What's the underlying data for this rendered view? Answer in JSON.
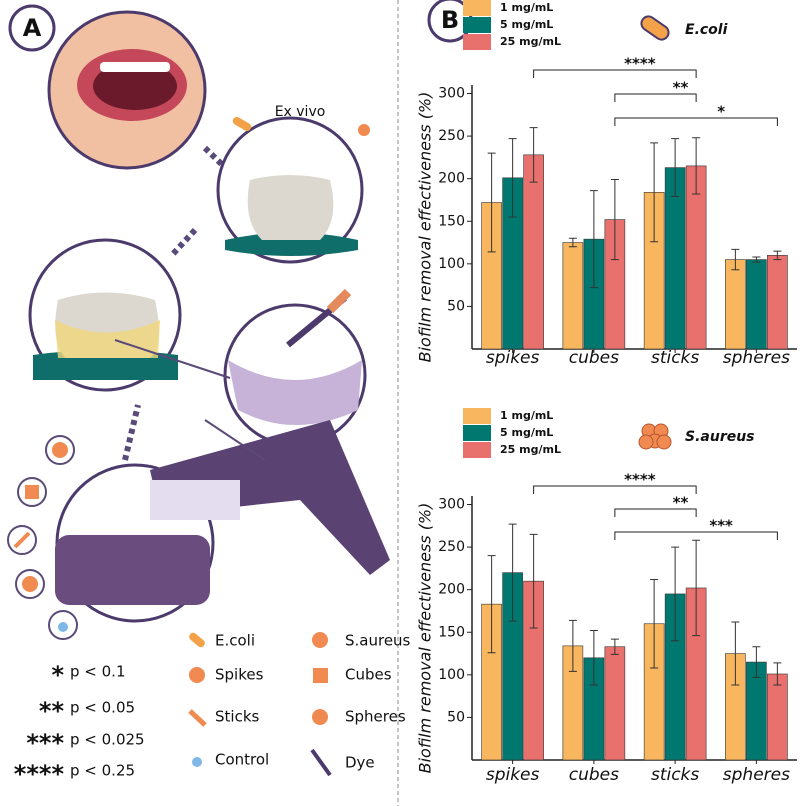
{
  "panel_a": {
    "label": "A",
    "ex_vivo": "Ex vivo",
    "legend": [
      "E.coli",
      "S.aureus",
      "Spikes",
      "Cubes",
      "Sticks",
      "Spheres",
      "Control",
      "Dye"
    ],
    "significance": [
      {
        "stars": "*",
        "text": "p < 0.1"
      },
      {
        "stars": "**",
        "text": "p < 0.05"
      },
      {
        "stars": "***",
        "text": "p < 0.025"
      },
      {
        "stars": "****",
        "text": "p < 0.25"
      }
    ]
  },
  "panel_b": {
    "label": "B"
  },
  "chart_data": [
    {
      "type": "bar",
      "legend_title": "E.coli",
      "y_label": "Biofilm removal effectiveness (%)",
      "categories": [
        "spikes",
        "cubes",
        "sticks",
        "spheres"
      ],
      "series": [
        {
          "name": "1 mg/mL",
          "color": "#f8b65e",
          "values": [
            172,
            125,
            184,
            105
          ],
          "errors": [
            58,
            5,
            58,
            12
          ]
        },
        {
          "name": "5 mg/mL",
          "color": "#00786f",
          "values": [
            201,
            129,
            213,
            105
          ],
          "errors": [
            46,
            57,
            34,
            3
          ]
        },
        {
          "name": "25 mg/mL",
          "color": "#e8716e",
          "values": [
            228,
            152,
            215,
            110
          ],
          "errors": [
            32,
            47,
            33,
            5
          ]
        }
      ],
      "ylim": [
        0,
        310
      ],
      "yticks": [
        50,
        100,
        150,
        200,
        250,
        300
      ],
      "annotations": [
        "****",
        "**",
        "*"
      ]
    },
    {
      "type": "bar",
      "legend_title": "S.aureus",
      "y_label": "Biofilm removal effectiveness (%)",
      "categories": [
        "spikes",
        "cubes",
        "sticks",
        "spheres"
      ],
      "series": [
        {
          "name": "1 mg/mL",
          "color": "#f8b65e",
          "values": [
            183,
            134,
            160,
            125
          ],
          "errors": [
            57,
            30,
            52,
            37
          ]
        },
        {
          "name": "5 mg/mL",
          "color": "#00786f",
          "values": [
            220,
            120,
            195,
            115
          ],
          "errors": [
            57,
            32,
            55,
            18
          ]
        },
        {
          "name": "25 mg/mL",
          "color": "#e8716e",
          "values": [
            210,
            133,
            202,
            101
          ],
          "errors": [
            55,
            9,
            56,
            13
          ]
        }
      ],
      "ylim": [
        0,
        310
      ],
      "yticks": [
        50,
        100,
        150,
        200,
        250,
        300
      ],
      "annotations": [
        "****",
        "**",
        "***"
      ]
    }
  ]
}
